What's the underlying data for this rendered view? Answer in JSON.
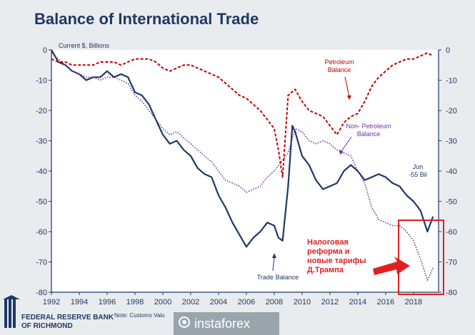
{
  "title": "Balance of International Trade",
  "footer": {
    "org_line1": "FEDERAL RESERVE BANK",
    "org_line2": "OF RICHMOND",
    "note": "Note: Customs Valu",
    "watermark": "instaforex"
  },
  "chart_data": {
    "type": "line",
    "title": "Balance of International Trade",
    "ylabel": "Current $, Billions",
    "xlim": [
      1992,
      2019.8
    ],
    "ylim": [
      -80,
      0
    ],
    "x_ticks": [
      "1992",
      "1994",
      "1996",
      "1998",
      "2000",
      "2002",
      "2004",
      "2006",
      "2008",
      "2010",
      "2012",
      "2014",
      "2016",
      "2018"
    ],
    "y_ticks_left": [
      "0",
      "-10",
      "-20",
      "-30",
      "-40",
      "-50",
      "-60",
      "-70",
      "-80"
    ],
    "y_ticks_right": [
      "0",
      "-10",
      "-20",
      "-30",
      "-40",
      "-50",
      "-60",
      "-70",
      "-80"
    ],
    "grid": false,
    "series": [
      {
        "name": "Trade Balance",
        "color": "#1f3864",
        "style": "solid",
        "x": [
          1992,
          1992.5,
          1993,
          1993.5,
          1994,
          1994.5,
          1995,
          1995.5,
          1996,
          1996.5,
          1997,
          1997.5,
          1998,
          1998.5,
          1999,
          1999.5,
          2000,
          2000.5,
          2001,
          2001.5,
          2002,
          2002.5,
          2003,
          2003.5,
          2004,
          2004.5,
          2005,
          2005.5,
          2006,
          2006.5,
          2007,
          2007.5,
          2008,
          2008.3,
          2008.6,
          2009,
          2009.3,
          2009.5,
          2010,
          2010.5,
          2011,
          2011.5,
          2012,
          2012.5,
          2013,
          2013.5,
          2014,
          2014.5,
          2015,
          2015.5,
          2016,
          2016.5,
          2017,
          2017.5,
          2018,
          2018.5,
          2019,
          2019.4
        ],
        "values": [
          0,
          -4,
          -5,
          -7,
          -8,
          -10,
          -9,
          -9,
          -7,
          -9,
          -8,
          -9,
          -14,
          -15,
          -18,
          -23,
          -28,
          -31,
          -30,
          -33,
          -35,
          -39,
          -41,
          -42,
          -48,
          -52,
          -57,
          -61,
          -65,
          -62,
          -60,
          -57,
          -58,
          -62,
          -63,
          -45,
          -25,
          -27,
          -35,
          -38,
          -43,
          -46,
          -45,
          -44,
          -40,
          -38,
          -40,
          -43,
          -42,
          -41,
          -42,
          -44,
          -45,
          -48,
          -50,
          -53,
          -60,
          -55
        ]
      },
      {
        "name": "Non- Petroleum Balance",
        "color": "#7030a0",
        "style": "dotted",
        "x": [
          1992,
          1992.5,
          1993,
          1993.5,
          1994,
          1994.5,
          1995,
          1995.5,
          1996,
          1996.5,
          1997,
          1997.5,
          1998,
          1998.5,
          1999,
          1999.5,
          2000,
          2000.5,
          2001,
          2001.5,
          2002,
          2002.5,
          2003,
          2003.5,
          2004,
          2004.5,
          2005,
          2005.5,
          2006,
          2006.5,
          2007,
          2007.5,
          2008,
          2008.5,
          2009,
          2009.5,
          2010,
          2010.5,
          2011,
          2011.5,
          2012,
          2012.5,
          2013,
          2013.5,
          2014,
          2014.5,
          2015,
          2015.5,
          2016,
          2016.5,
          2017,
          2017.5,
          2018,
          2018.5,
          2019,
          2019.4
        ],
        "values": [
          -1,
          -3,
          -5,
          -7,
          -8,
          -9,
          -9,
          -10,
          -9,
          -9,
          -10,
          -11,
          -15,
          -17,
          -20,
          -23,
          -26,
          -28,
          -27,
          -29,
          -31,
          -33,
          -35,
          -37,
          -40,
          -43,
          -44,
          -45,
          -47,
          -46,
          -45,
          -42,
          -40,
          -37,
          -34,
          -26,
          -27,
          -30,
          -31,
          -30,
          -31,
          -33,
          -34,
          -35,
          -40,
          -44,
          -52,
          -56,
          -57,
          -58,
          -58,
          -60,
          -63,
          -69,
          -76,
          -72
        ]
      },
      {
        "name": "Petroleum Balance",
        "color": "#c00000",
        "style": "dashed",
        "x": [
          1992,
          1992.5,
          1993,
          1993.5,
          1994,
          1994.5,
          1995,
          1995.5,
          1996,
          1996.5,
          1997,
          1997.5,
          1998,
          1998.5,
          1999,
          1999.5,
          2000,
          2000.5,
          2001,
          2001.5,
          2002,
          2002.5,
          2003,
          2003.5,
          2004,
          2004.5,
          2005,
          2005.5,
          2006,
          2006.5,
          2007,
          2007.5,
          2008,
          2008.3,
          2008.6,
          2009,
          2009.5,
          2010,
          2010.5,
          2011,
          2011.5,
          2012,
          2012.5,
          2013,
          2013.5,
          2014,
          2014.5,
          2015,
          2015.5,
          2016,
          2016.5,
          2017,
          2017.5,
          2018,
          2018.5,
          2019,
          2019.4
        ],
        "values": [
          -3,
          -4,
          -4,
          -5,
          -5,
          -5,
          -5,
          -4,
          -4,
          -4,
          -5,
          -4,
          -3,
          -3,
          -3,
          -4,
          -6,
          -7,
          -6,
          -5,
          -5,
          -6,
          -7,
          -8,
          -9,
          -11,
          -13,
          -15,
          -16,
          -18,
          -20,
          -23,
          -26,
          -33,
          -42,
          -15,
          -13,
          -17,
          -20,
          -21,
          -22,
          -25,
          -28,
          -24,
          -22,
          -21,
          -17,
          -12,
          -9,
          -7,
          -5,
          -4,
          -3,
          -3,
          -2,
          -1,
          -2
        ]
      }
    ],
    "annotations": {
      "petroleum": [
        "Petroleum",
        "Balance"
      ],
      "non_petroleum": [
        "Non- Petroleum",
        "Balance"
      ],
      "trade": [
        "Trade Balance"
      ],
      "jun": [
        "Jun",
        "-55 Bil"
      ],
      "callout": [
        "Налоговая",
        "реформа и",
        "новые тарифы",
        "Д.Трампа"
      ]
    },
    "colors": {
      "trade": "#1f3864",
      "non_petroleum": "#7030a0",
      "petroleum": "#c00000",
      "axis": "#1f3864",
      "callout": "#e02020"
    }
  }
}
